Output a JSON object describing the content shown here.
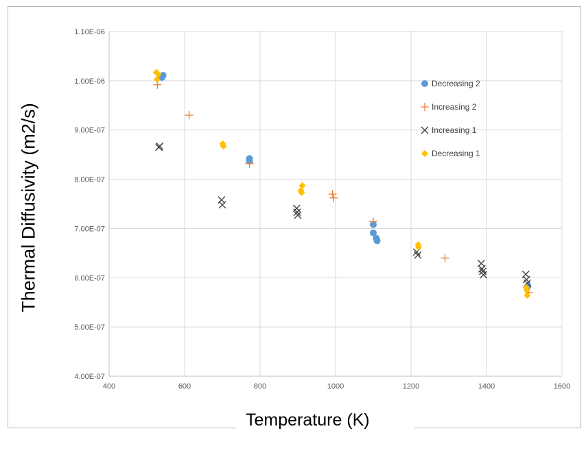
{
  "chart_data": {
    "type": "scatter",
    "title": "",
    "xlabel": "Temperature (K)",
    "ylabel": "Thermal Diffusivity (m2/s)",
    "xlim": [
      400,
      1600
    ],
    "ylim": [
      4e-07,
      1.1e-06
    ],
    "grid": true,
    "legend_position": "top-right",
    "x_ticks": [
      "400",
      "600",
      "800",
      "1000",
      "1200",
      "1400",
      "1600"
    ],
    "x_tick_values": [
      400,
      600,
      800,
      1000,
      1200,
      1400,
      1600
    ],
    "y_ticks": [
      "4.00E-07",
      "5.00E-07",
      "6.00E-07",
      "7.00E-07",
      "8.00E-07",
      "9.00E-07",
      "1.00E-06",
      "1.10E-06"
    ],
    "y_tick_values": [
      4e-07,
      5e-07,
      6e-07,
      7e-07,
      8e-07,
      9e-07,
      1e-06,
      1.1e-06
    ],
    "series": [
      {
        "name": "Decreasing 2",
        "marker": "circle",
        "color": "#5b9bd5",
        "points": [
          [
            540,
            1.007e-06
          ],
          [
            543,
            1.011e-06
          ],
          [
            772,
            8.42e-07
          ],
          [
            772,
            8.37e-07
          ],
          [
            1100,
            7.08e-07
          ],
          [
            1100,
            6.91e-07
          ],
          [
            1108,
            6.8e-07
          ],
          [
            1110,
            6.75e-07
          ],
          [
            1510,
            5.83e-07
          ]
        ]
      },
      {
        "name": "Increasing 2",
        "marker": "plus",
        "color": "#ed7d31",
        "points": [
          [
            528,
            9.92e-07
          ],
          [
            612,
            9.3e-07
          ],
          [
            772,
            8.32e-07
          ],
          [
            992,
            7.7e-07
          ],
          [
            995,
            7.62e-07
          ],
          [
            1100,
            7.14e-07
          ],
          [
            1290,
            6.4e-07
          ],
          [
            1512,
            5.7e-07
          ]
        ]
      },
      {
        "name": "Increasing 1",
        "marker": "x",
        "color": "#404040",
        "points": [
          [
            532,
            8.65e-07
          ],
          [
            534,
            8.67e-07
          ],
          [
            698,
            7.58e-07
          ],
          [
            700,
            7.48e-07
          ],
          [
            897,
            7.41e-07
          ],
          [
            898,
            7.33e-07
          ],
          [
            900,
            7.27e-07
          ],
          [
            1215,
            6.52e-07
          ],
          [
            1218,
            6.46e-07
          ],
          [
            1386,
            6.29e-07
          ],
          [
            1388,
            6.18e-07
          ],
          [
            1390,
            6.13e-07
          ],
          [
            1392,
            6.06e-07
          ],
          [
            1504,
            6.07e-07
          ],
          [
            1506,
            5.96e-07
          ],
          [
            1508,
            5.89e-07
          ]
        ]
      },
      {
        "name": "Decreasing 1",
        "marker": "diamond",
        "color": "#ffc000",
        "points": [
          [
            525,
            1.017e-06
          ],
          [
            530,
            1.013e-06
          ],
          [
            527,
            1.003e-06
          ],
          [
            701,
            8.72e-07
          ],
          [
            703,
            8.67e-07
          ],
          [
            908,
            7.77e-07
          ],
          [
            912,
            7.87e-07
          ],
          [
            910,
            7.73e-07
          ],
          [
            1219,
            6.67e-07
          ],
          [
            1220,
            6.62e-07
          ],
          [
            1505,
            5.8e-07
          ],
          [
            1507,
            5.75e-07
          ],
          [
            1508,
            5.64e-07
          ]
        ]
      }
    ]
  }
}
